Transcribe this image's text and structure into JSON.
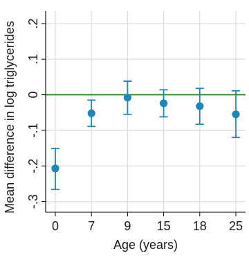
{
  "chart_data": {
    "type": "scatter",
    "title": "",
    "xlabel": "Age (years)",
    "ylabel": "Mean difference in log triglycerides",
    "categories": [
      "0",
      "7",
      "9",
      "15",
      "18",
      "25"
    ],
    "yticks": [
      {
        "value": -0.3,
        "label": "-.3"
      },
      {
        "value": -0.2,
        "label": "-.2"
      },
      {
        "value": -0.1,
        "label": "-.1"
      },
      {
        "value": 0,
        "label": "0"
      },
      {
        "value": 0.1,
        "label": ".1"
      },
      {
        "value": 0.2,
        "label": ".2"
      }
    ],
    "ylim": [
      -0.33,
      0.235
    ],
    "grid": true,
    "reference_line": {
      "y": 0,
      "color": "#2e8b22"
    },
    "point_color": "#1f87b8",
    "series": [
      {
        "estimates": [
          -0.207,
          -0.052,
          -0.008,
          -0.024,
          -0.032,
          -0.055
        ],
        "ci_low": [
          -0.266,
          -0.089,
          -0.055,
          -0.062,
          -0.083,
          -0.12
        ],
        "ci_high": [
          -0.151,
          -0.015,
          0.038,
          0.014,
          0.018,
          0.011
        ]
      }
    ]
  }
}
